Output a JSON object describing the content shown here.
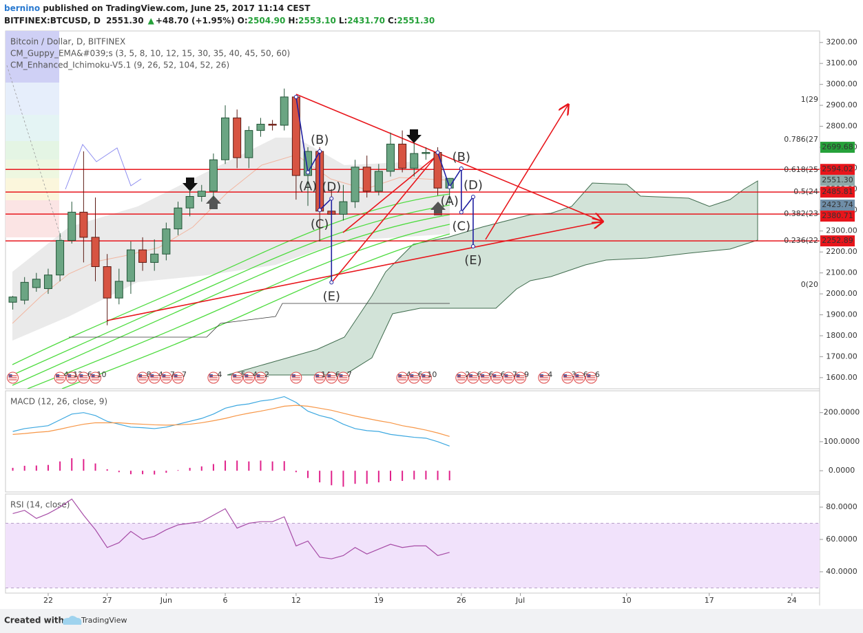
{
  "header": {
    "author": "bernino",
    "published": " published on TradingView.com, June 25, 2017 11:14 CEST",
    "symbol": "BITFINEX:BTCUSD, D",
    "last": "2551.30",
    "arrow": "▲",
    "change": "+48.70 (+1.95%)",
    "ohlc": [
      {
        "label": "O:",
        "value": "2504.90"
      },
      {
        "label": "H:",
        "value": "2553.10"
      },
      {
        "label": "L:",
        "value": "2431.70"
      },
      {
        "label": "C:",
        "value": "2551.30"
      }
    ]
  },
  "footer": {
    "text": "Created with",
    "brand": "TradingView"
  },
  "chart_data": [
    {
      "type": "candlestick",
      "title": "Bitcoin / Dollar, D, BITFINEX",
      "indicators": [
        "CM_Guppy_EMA&#039;s (3, 5, 8, 10, 12, 15, 30, 35, 40, 45, 50, 60)",
        "CM_Enhanced_Ichimoku-V5.1 (9, 26, 52, 104, 52, 26)"
      ],
      "x": [
        "2017-05-19",
        "2017-05-20",
        "2017-05-21",
        "2017-05-22",
        "2017-05-23",
        "2017-05-24",
        "2017-05-25",
        "2017-05-26",
        "2017-05-27",
        "2017-05-28",
        "2017-05-29",
        "2017-05-30",
        "2017-05-31",
        "2017-06-01",
        "2017-06-02",
        "2017-06-03",
        "2017-06-04",
        "2017-06-05",
        "2017-06-06",
        "2017-06-07",
        "2017-06-08",
        "2017-06-09",
        "2017-06-10",
        "2017-06-11",
        "2017-06-12",
        "2017-06-13",
        "2017-06-14",
        "2017-06-15",
        "2017-06-16",
        "2017-06-17",
        "2017-06-18",
        "2017-06-19",
        "2017-06-20",
        "2017-06-21",
        "2017-06-22",
        "2017-06-23",
        "2017-06-24",
        "2017-06-25"
      ],
      "open": [
        1960,
        1970,
        2030,
        2025,
        2090,
        2255,
        2390,
        2270,
        2130,
        1980,
        2060,
        2210,
        2150,
        2190,
        2310,
        2410,
        2465,
        2490,
        2640,
        2840,
        2650,
        2780,
        2810,
        2805,
        2940,
        2565,
        2680,
        2395,
        2380,
        2440,
        2605,
        2490,
        2585,
        2715,
        2600,
        2670,
        2675,
        2504.9
      ],
      "high": [
        1990,
        2080,
        2100,
        2120,
        2290,
        2440,
        2680,
        2460,
        2190,
        2120,
        2250,
        2270,
        2260,
        2340,
        2440,
        2500,
        2520,
        2670,
        2900,
        2880,
        2800,
        2840,
        2830,
        2980,
        2950,
        2700,
        2700,
        2500,
        2520,
        2640,
        2660,
        2620,
        2770,
        2780,
        2720,
        2700,
        2700,
        2553.1
      ],
      "low": [
        1925,
        1950,
        2010,
        2000,
        2060,
        2240,
        2150,
        2060,
        1850,
        1950,
        2000,
        2110,
        2110,
        2160,
        2280,
        2370,
        2440,
        2450,
        2620,
        2600,
        2600,
        2750,
        2780,
        2780,
        2450,
        2420,
        2250,
        2050,
        2350,
        2410,
        2460,
        2470,
        2560,
        2580,
        2560,
        2640,
        2470,
        2431.7
      ],
      "close": [
        1985,
        2055,
        2070,
        2090,
        2255,
        2390,
        2270,
        2130,
        1980,
        2060,
        2210,
        2150,
        2190,
        2310,
        2410,
        2465,
        2490,
        2640,
        2840,
        2650,
        2780,
        2810,
        2805,
        2940,
        2565,
        2680,
        2395,
        2380,
        2440,
        2605,
        2490,
        2585,
        2715,
        2600,
        2670,
        2675,
        2505,
        2551.3
      ],
      "up_color": "#6ba583",
      "down_color": "#d75442",
      "xlim": [
        "2017-05-18",
        "2017-07-26"
      ],
      "xticks": [
        {
          "value": "2017-05-22",
          "label": "22"
        },
        {
          "value": "2017-05-27",
          "label": "27"
        },
        {
          "value": "2017-06-01",
          "label": "Jun"
        },
        {
          "value": "2017-06-06",
          "label": "6"
        },
        {
          "value": "2017-06-12",
          "label": "12"
        },
        {
          "value": "2017-06-19",
          "label": "19"
        },
        {
          "value": "2017-06-26",
          "label": "26"
        },
        {
          "value": "2017-07-01",
          "label": "Jul"
        },
        {
          "value": "2017-07-10",
          "label": "10"
        },
        {
          "value": "2017-07-17",
          "label": "17"
        },
        {
          "value": "2017-07-24",
          "label": "24"
        }
      ],
      "ylim": [
        1547,
        3255
      ],
      "yticks": [
        {
          "value": 1600,
          "label": "1600.00"
        },
        {
          "value": 1700,
          "label": "1700.00"
        },
        {
          "value": 1800,
          "label": "1800.00"
        },
        {
          "value": 1900,
          "label": "1900.00"
        },
        {
          "value": 2000,
          "label": "2000.00"
        },
        {
          "value": 2100,
          "label": "2100.00"
        },
        {
          "value": 2200,
          "label": "2200.00"
        },
        {
          "value": 2300,
          "label": "2300.00"
        },
        {
          "value": 2400,
          "label": "2400.00"
        },
        {
          "value": 2500,
          "label": "2500.00"
        },
        {
          "value": 2600,
          "label": "2600.00"
        },
        {
          "value": 2700,
          "label": "2700.00"
        },
        {
          "value": 2800,
          "label": "2800.00"
        },
        {
          "value": 2900,
          "label": "2900.00"
        },
        {
          "value": 3000,
          "label": "3000.00"
        },
        {
          "value": 3100,
          "label": "3100.00"
        },
        {
          "value": 3200,
          "label": "3200.00"
        }
      ],
      "grid": false,
      "hlines": {
        "color": "#e8151b",
        "values": [
          2594.02,
          2485.81,
          2380.71,
          2252.89
        ]
      },
      "price_labels": [
        {
          "value": 2699.68,
          "color": "#26a13a"
        },
        {
          "value": 2551.3,
          "label": "2551.30",
          "color": "#8fa8a8"
        },
        {
          "value": 2423.74,
          "color": "#6f8ea8"
        }
      ],
      "fib": [
        {
          "label": "1(29",
          "value": 2926,
          "color": "#8a8a8a"
        },
        {
          "label": "0.786(27",
          "value": 2736,
          "color": "#2a8ab8"
        },
        {
          "label": "0.618(25",
          "value": 2591,
          "color": "#3cb46c"
        },
        {
          "label": "0.5(24",
          "value": 2486,
          "color": "#4caf50"
        },
        {
          "label": "0.382(23",
          "value": 2381,
          "color": "#a0a020"
        },
        {
          "label": "0.236(22",
          "value": 2253,
          "color": "#d04040"
        },
        {
          "label": "0(20",
          "value": 2043,
          "color": "#8a8a8a"
        }
      ],
      "wave_color": "#1f1fa0",
      "waves": [
        {
          "x": [
            "2017-06-12",
            "2017-06-13",
            "2017-06-14",
            "2017-06-14",
            "2017-06-15",
            "2017-06-15"
          ],
          "y": [
            2940,
            2580,
            2680,
            2400,
            2455,
            2055
          ],
          "labels": [
            null,
            "(A)",
            "(B)",
            "(C)",
            "(D)",
            "(E)"
          ]
        },
        {
          "x": [
            "2017-06-24",
            "2017-06-25",
            "2017-06-26",
            "2017-06-26",
            "2017-06-27",
            "2017-06-27"
          ],
          "y": [
            2675,
            2510,
            2598,
            2390,
            2463,
            2227
          ],
          "labels": [
            null,
            "(A)",
            "(B)",
            "(C)",
            "(D)",
            "(E)"
          ]
        }
      ],
      "events": [
        {
          "x": "2017-05-19",
          "labels": [
            null
          ]
        },
        {
          "x": "2017-05-23",
          "labels": [
            "4",
            "12",
            "6",
            "10"
          ]
        },
        {
          "x": "2017-05-30",
          "labels": [
            "8",
            "4",
            "7",
            "7"
          ]
        },
        {
          "x": "2017-06-05",
          "labels": [
            "4"
          ]
        },
        {
          "x": "2017-06-07",
          "labels": [
            "5",
            "4",
            "2"
          ]
        },
        {
          "x": "2017-06-12",
          "labels": [
            null
          ]
        },
        {
          "x": "2017-06-14",
          "labels": [
            "14",
            "6",
            "7"
          ]
        },
        {
          "x": "2017-06-21",
          "labels": [
            "4",
            "6",
            "10"
          ]
        },
        {
          "x": "2017-06-26",
          "labels": [
            "2",
            "6",
            "6",
            "6",
            "7",
            "9"
          ]
        },
        {
          "x": "2017-07-03",
          "labels": [
            "4"
          ]
        },
        {
          "x": "2017-07-05",
          "labels": [
            "3",
            "6",
            "6"
          ]
        }
      ]
    },
    {
      "type": "line",
      "title": "MACD (12, 26, close, 9)",
      "x": [
        "2017-05-19",
        "2017-05-20",
        "2017-05-21",
        "2017-05-22",
        "2017-05-23",
        "2017-05-24",
        "2017-05-25",
        "2017-05-26",
        "2017-05-27",
        "2017-05-28",
        "2017-05-29",
        "2017-05-30",
        "2017-05-31",
        "2017-06-01",
        "2017-06-02",
        "2017-06-03",
        "2017-06-04",
        "2017-06-05",
        "2017-06-06",
        "2017-06-07",
        "2017-06-08",
        "2017-06-09",
        "2017-06-10",
        "2017-06-11",
        "2017-06-12",
        "2017-06-13",
        "2017-06-14",
        "2017-06-15",
        "2017-06-16",
        "2017-06-17",
        "2017-06-18",
        "2017-06-19",
        "2017-06-20",
        "2017-06-21",
        "2017-06-22",
        "2017-06-23",
        "2017-06-24",
        "2017-06-25"
      ],
      "series": [
        {
          "color": "#3ba7e0",
          "values": [
            135,
            145,
            150,
            155,
            175,
            195,
            200,
            190,
            170,
            160,
            150,
            148,
            145,
            150,
            160,
            170,
            180,
            195,
            215,
            225,
            230,
            240,
            245,
            255,
            235,
            205,
            190,
            180,
            160,
            145,
            138,
            135,
            125,
            120,
            115,
            112,
            100,
            85
          ]
        },
        {
          "color": "#f79646",
          "values": [
            125,
            128,
            132,
            135,
            143,
            152,
            160,
            165,
            165,
            165,
            162,
            160,
            158,
            157,
            158,
            160,
            165,
            172,
            180,
            190,
            198,
            205,
            213,
            222,
            225,
            222,
            215,
            208,
            198,
            188,
            180,
            172,
            165,
            155,
            148,
            140,
            130,
            118
          ]
        }
      ],
      "histogram": {
        "color": "#e0208a",
        "values": [
          10,
          17,
          18,
          20,
          32,
          43,
          40,
          25,
          5,
          -5,
          -12,
          -12,
          -13,
          -7,
          2,
          10,
          15,
          23,
          35,
          35,
          32,
          35,
          32,
          33,
          -5,
          -25,
          -40,
          -50,
          -55,
          -45,
          -45,
          -40,
          -35,
          -35,
          -30,
          -30,
          -32,
          -33
        ]
      },
      "ylim": [
        -73,
        275
      ],
      "yticks": [
        {
          "value": 0,
          "label": "0.0000"
        },
        {
          "value": 100,
          "label": "100.0000"
        },
        {
          "value": 200,
          "label": "200.0000"
        }
      ]
    },
    {
      "type": "line",
      "title": "RSI (14, close)",
      "x": [
        "2017-05-19",
        "2017-05-20",
        "2017-05-21",
        "2017-05-22",
        "2017-05-23",
        "2017-05-24",
        "2017-05-25",
        "2017-05-26",
        "2017-05-27",
        "2017-05-28",
        "2017-05-29",
        "2017-05-30",
        "2017-05-31",
        "2017-06-01",
        "2017-06-02",
        "2017-06-03",
        "2017-06-04",
        "2017-06-05",
        "2017-06-06",
        "2017-06-07",
        "2017-06-08",
        "2017-06-09",
        "2017-06-10",
        "2017-06-11",
        "2017-06-12",
        "2017-06-13",
        "2017-06-14",
        "2017-06-15",
        "2017-06-16",
        "2017-06-17",
        "2017-06-18",
        "2017-06-19",
        "2017-06-20",
        "2017-06-21",
        "2017-06-22",
        "2017-06-23",
        "2017-06-24",
        "2017-06-25"
      ],
      "series": [
        {
          "color": "#a64ca6",
          "values": [
            76,
            78,
            73,
            76,
            80,
            85,
            75,
            66,
            55,
            58,
            65,
            60,
            62,
            66,
            69,
            70,
            71,
            75,
            79,
            67,
            70,
            71,
            71,
            74,
            56,
            59,
            49,
            48,
            50,
            55,
            51,
            54,
            57,
            55,
            56,
            56,
            50,
            52
          ]
        }
      ],
      "band": [
        30,
        70
      ],
      "band_color": "#f1e2fb",
      "ylim": [
        26.8,
        88.1
      ],
      "yticks": [
        {
          "value": 40,
          "label": "40.0000"
        },
        {
          "value": 60,
          "label": "60.0000"
        },
        {
          "value": 80,
          "label": "80.0000"
        }
      ]
    }
  ]
}
